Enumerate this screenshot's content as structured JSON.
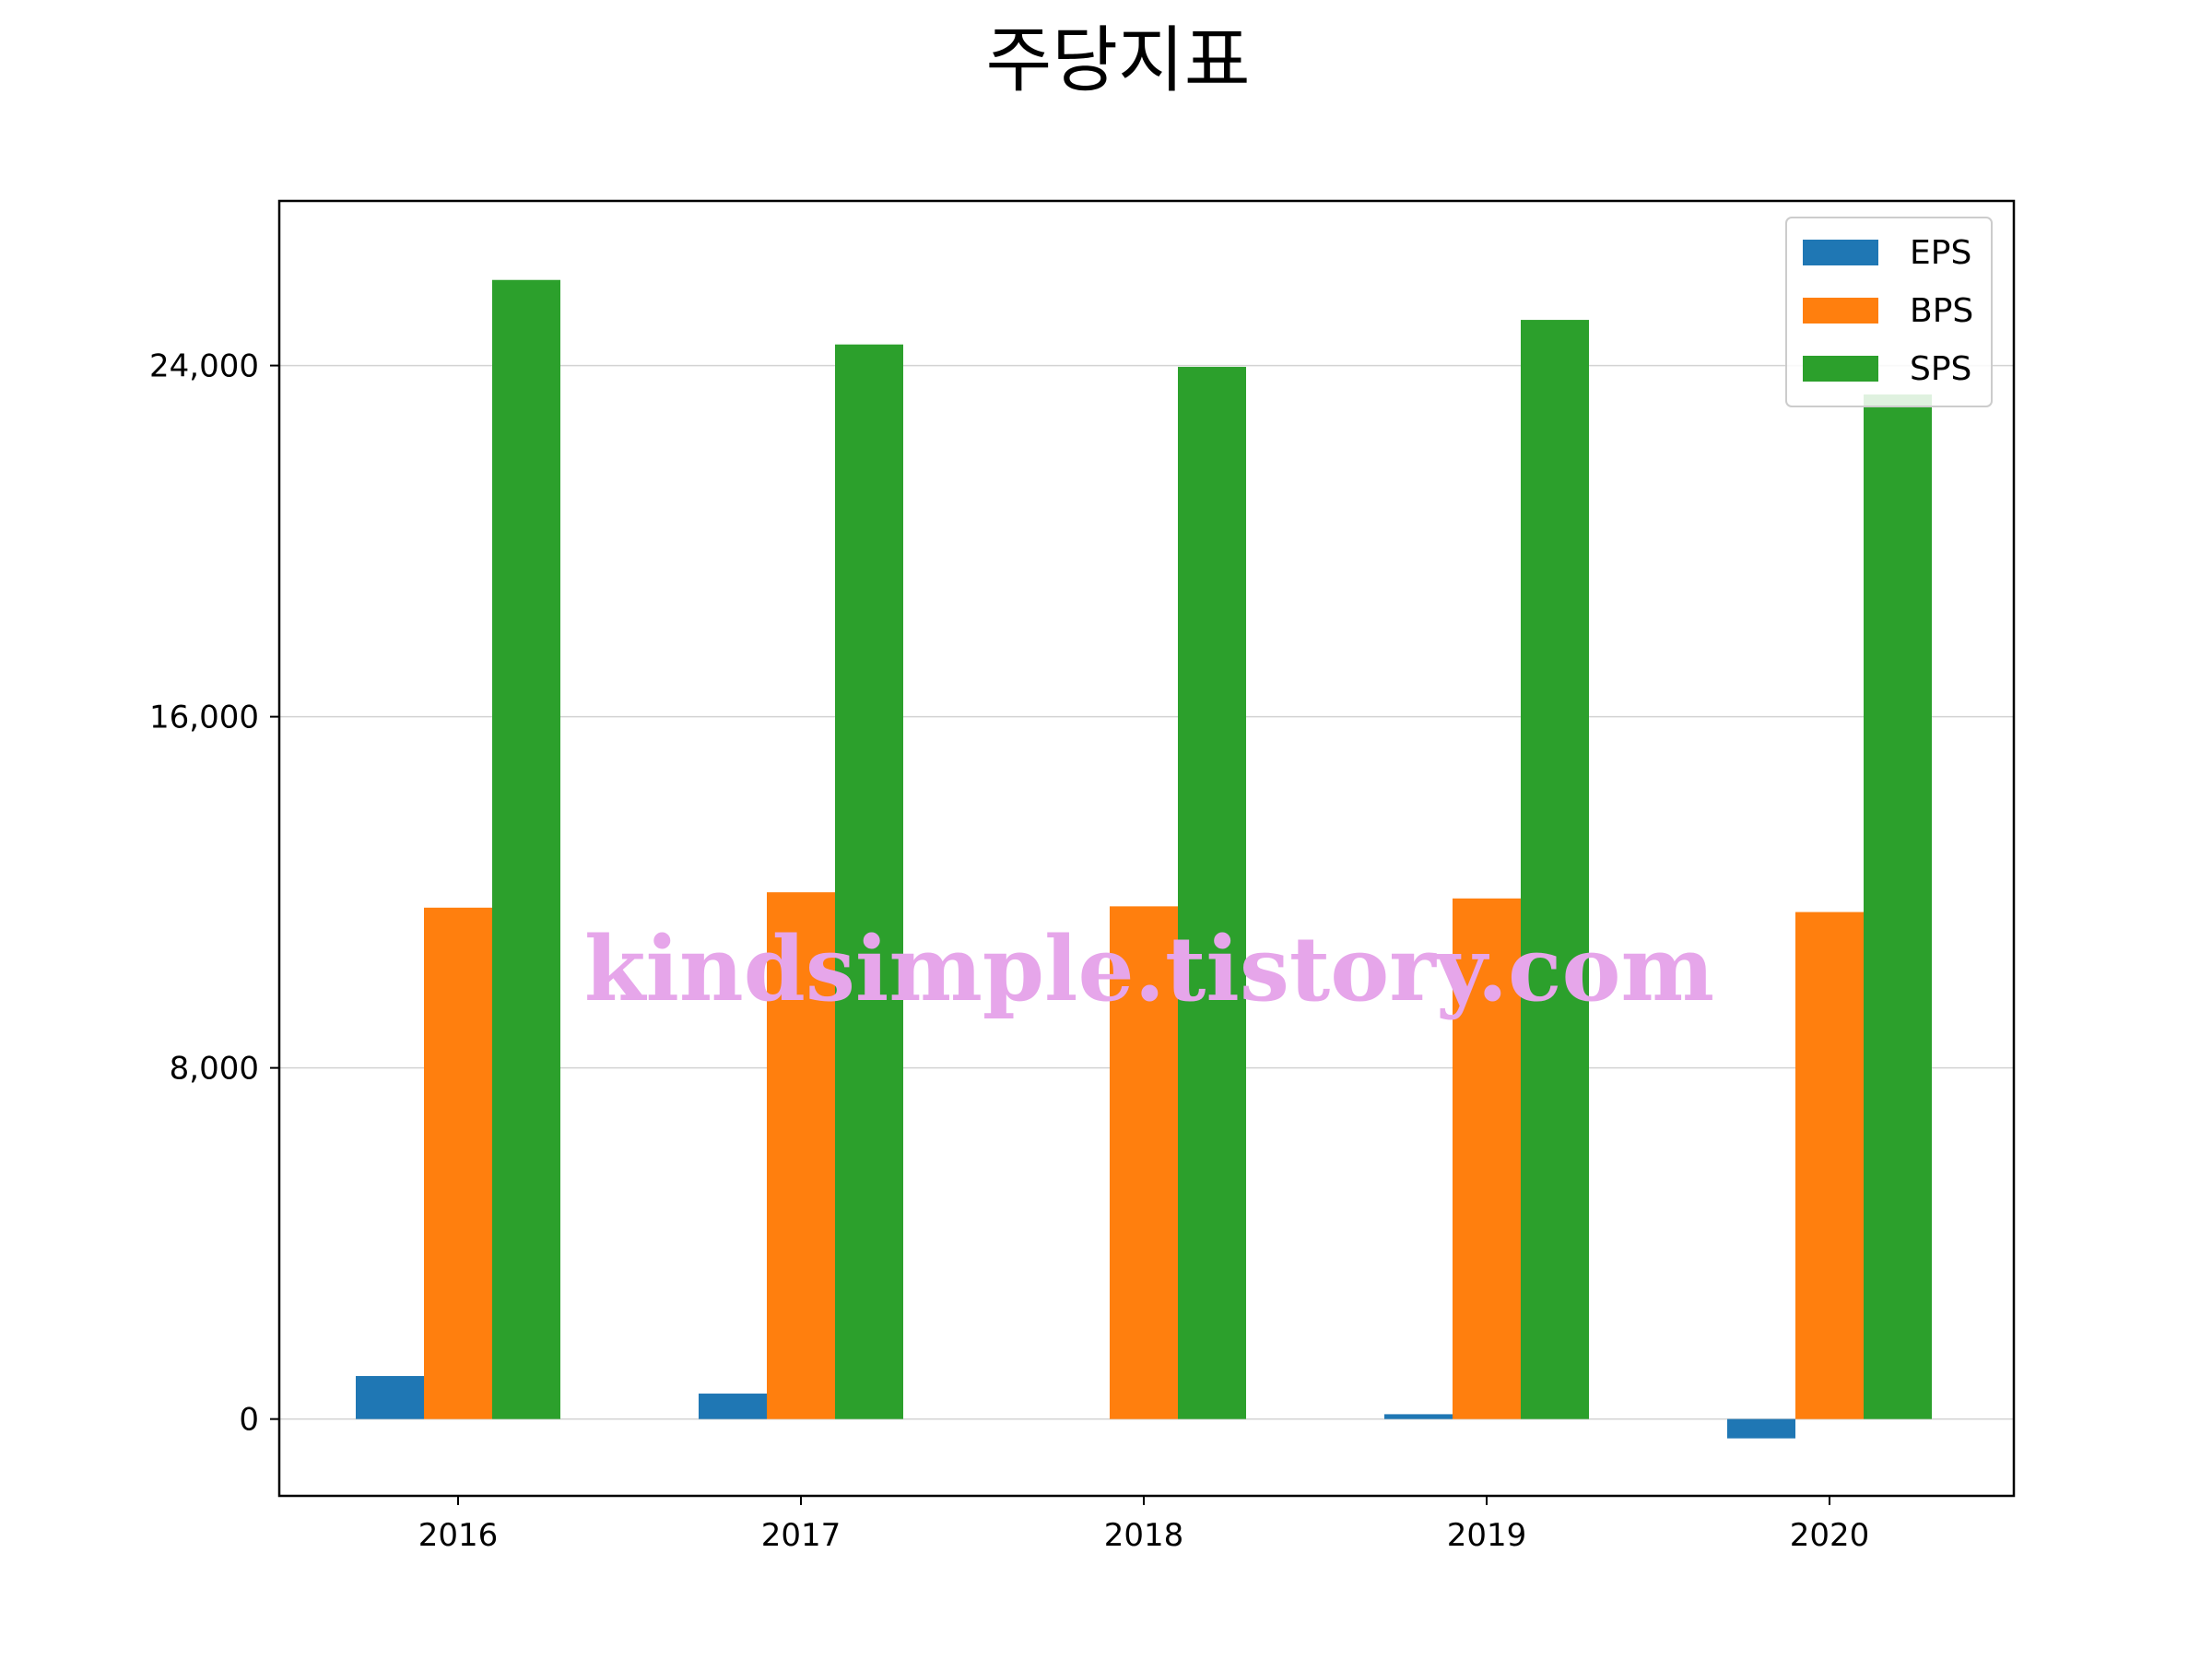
{
  "chart_data": {
    "type": "bar",
    "title": "주당지표",
    "xlabel": "",
    "ylabel": "",
    "categories": [
      "2016",
      "2017",
      "2018",
      "2019",
      "2020"
    ],
    "series": [
      {
        "name": "EPS",
        "color": "#1f77b4",
        "values": [
          980,
          580,
          0,
          110,
          -440
        ]
      },
      {
        "name": "BPS",
        "color": "#ff7f0e",
        "values": [
          11650,
          12000,
          11680,
          11860,
          11550
        ]
      },
      {
        "name": "SPS",
        "color": "#2ca02c",
        "values": [
          25950,
          24480,
          23970,
          25040,
          23340
        ]
      }
    ],
    "ylim": [
      -1750,
      27750
    ],
    "yticks": [
      0,
      8000,
      16000,
      24000
    ],
    "ytick_labels": [
      "0",
      "8,000",
      "16,000",
      "24,000"
    ],
    "grid": "horizontal",
    "legend_position": "top-right",
    "watermark": "kindsimple.tistory.com",
    "watermark_color": "#e6a6ea"
  }
}
